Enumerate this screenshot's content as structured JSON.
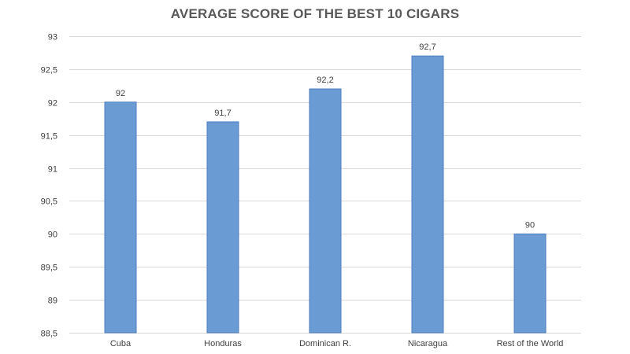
{
  "chart_data": {
    "type": "bar",
    "title": "AVERAGE SCORE OF THE BEST 10 CIGARS",
    "categories": [
      "Cuba",
      "Honduras",
      "Dominican R.",
      "Nicaragua",
      "Rest of the World"
    ],
    "values": [
      92,
      91.7,
      92.2,
      92.7,
      90
    ],
    "value_labels": [
      "92",
      "91,7",
      "92,2",
      "92,7",
      "90"
    ],
    "ylim": [
      88.5,
      93
    ],
    "yticks": [
      88.5,
      89,
      89.5,
      90,
      90.5,
      91,
      91.5,
      92,
      92.5,
      93
    ],
    "ytick_labels": [
      "88,5",
      "89",
      "89,5",
      "90",
      "90,5",
      "91",
      "91,5",
      "92",
      "92,5",
      "93"
    ],
    "xlabel": "",
    "ylabel": "",
    "grid": true,
    "legend": "none",
    "colors": {
      "bar_fill": "#6a9bd3",
      "bar_stroke": "#4f7fbf",
      "grid": "#d9d9d9",
      "axis_text": "#404040",
      "title": "#595959"
    }
  }
}
